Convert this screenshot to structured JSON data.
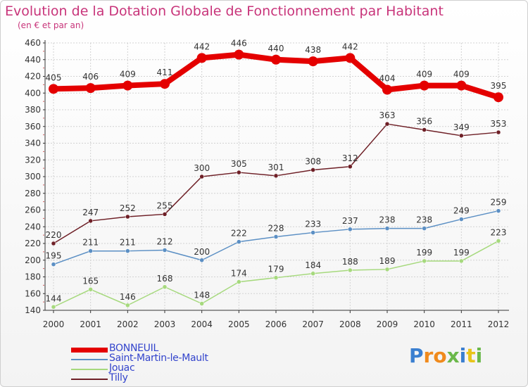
{
  "title": "Evolution de la Dotation Globale de Fonctionnement par Habitant",
  "subtitle": "(en € et par an)",
  "logo_text": "Proxiti",
  "chart_data": {
    "type": "line",
    "x": [
      "2000",
      "2001",
      "2002",
      "2003",
      "2004",
      "2005",
      "2006",
      "2007",
      "2008",
      "2009",
      "2010",
      "2011",
      "2012"
    ],
    "ylim": [
      140,
      460
    ],
    "yticks": [
      140,
      160,
      180,
      200,
      220,
      240,
      260,
      280,
      300,
      320,
      340,
      360,
      380,
      400,
      420,
      440,
      460
    ],
    "grid": true,
    "legend_position": "bottom-left",
    "series": [
      {
        "name": "BONNEUIL",
        "color": "#e40000",
        "values": [
          405,
          406,
          409,
          411,
          442,
          446,
          440,
          438,
          442,
          404,
          409,
          409,
          395
        ]
      },
      {
        "name": "Saint-Martin-le-Mault",
        "color": "#5b8fc4",
        "values": [
          195,
          211,
          211,
          212,
          200,
          222,
          228,
          233,
          237,
          238,
          238,
          249,
          259
        ]
      },
      {
        "name": "Jouac",
        "color": "#a6d97d",
        "values": [
          144,
          165,
          146,
          168,
          148,
          174,
          179,
          184,
          188,
          189,
          199,
          199,
          223
        ]
      },
      {
        "name": "Tilly",
        "color": "#6e1f26",
        "values": [
          220,
          247,
          252,
          255,
          300,
          305,
          301,
          308,
          312,
          363,
          356,
          349,
          353
        ]
      }
    ]
  }
}
